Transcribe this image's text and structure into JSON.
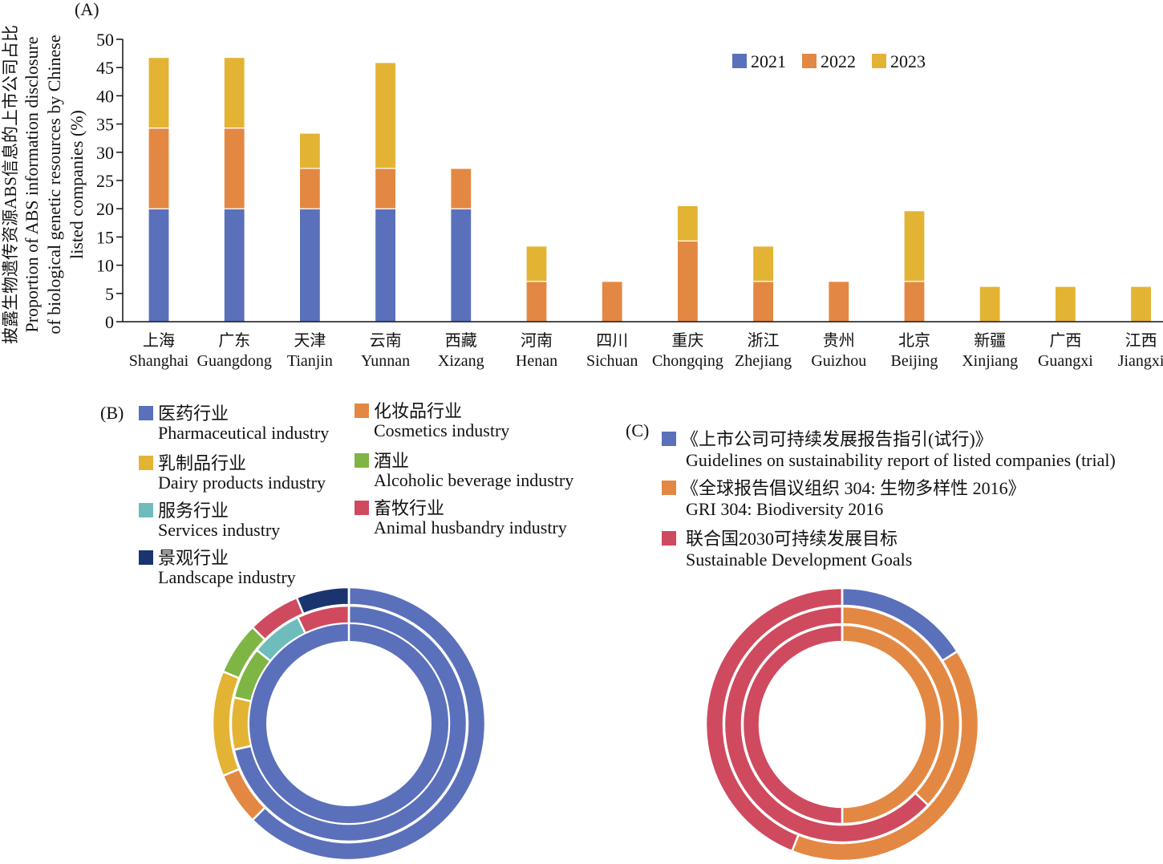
{
  "chart_data": [
    {
      "type": "bar",
      "stacked": true,
      "panel_label": "(A)",
      "ylabel_lines": [
        "披露生物遗传资源ABS信息的上市公司占比",
        "Proportion of ABS information disclosure",
        "of biological genetic resources by Chinese",
        "listed companies (%)"
      ],
      "ylim": [
        0,
        50
      ],
      "yticks": [
        "0",
        "5",
        "10",
        "15",
        "20",
        "25",
        "30",
        "35",
        "40",
        "45",
        "50"
      ],
      "categories_zh": [
        "上海",
        "广东",
        "天津",
        "云南",
        "西藏",
        "河南",
        "四川",
        "重庆",
        "浙江",
        "贵州",
        "北京",
        "新疆",
        "广西",
        "江西"
      ],
      "categories": [
        "Shanghai",
        "Guangdong",
        "Tianjin",
        "Yunnan",
        "Xizang",
        "Henan",
        "Sichuan",
        "Chongqing",
        "Zhejiang",
        "Guizhou",
        "Beijing",
        "Xinjiang",
        "Guangxi",
        "Jiangxi"
      ],
      "legend_position": "top-right",
      "series": [
        {
          "name": "2021",
          "color": "#5b70bb",
          "values": [
            20,
            20,
            20,
            20,
            20,
            0,
            0,
            0,
            0,
            0,
            0,
            0,
            0,
            0
          ]
        },
        {
          "name": "2022",
          "color": "#e38843",
          "values": [
            14.29,
            14.29,
            7.14,
            7.14,
            7.14,
            7.14,
            7.14,
            14.29,
            7.14,
            7.14,
            7.14,
            0,
            0,
            0
          ]
        },
        {
          "name": "2023",
          "color": "#e3b334",
          "values": [
            12.5,
            12.5,
            6.25,
            18.75,
            0,
            6.25,
            0,
            6.25,
            6.25,
            0,
            12.5,
            6.25,
            6.25,
            6.25
          ]
        }
      ]
    },
    {
      "type": "pie",
      "donut": true,
      "panel_label": "(B)",
      "categories": [
        {
          "zh": "医药行业",
          "en": "Pharmaceutical industry",
          "color": "#5b70bb"
        },
        {
          "zh": "化妆品行业",
          "en": "Cosmetics industry",
          "color": "#e38843"
        },
        {
          "zh": "乳制品行业",
          "en": "Dairy products industry",
          "color": "#e3b334"
        },
        {
          "zh": "酒业",
          "en": "Alcoholic beverage industry",
          "color": "#7fb544"
        },
        {
          "zh": "服务行业",
          "en": "Services industry",
          "color": "#6ebcbc"
        },
        {
          "zh": "畜牧行业",
          "en": "Animal husbandry industry",
          "color": "#cf4a5e"
        },
        {
          "zh": "景观行业",
          "en": "Landscape industry",
          "color": "#1a3470"
        }
      ],
      "rings_outer_to_inner": [
        {
          "values": [
            62.5,
            6.25,
            12.5,
            6.25,
            0,
            6.25,
            6.25
          ]
        },
        {
          "values": [
            71.43,
            0,
            7.14,
            7.14,
            7.14,
            7.14,
            0
          ]
        },
        {
          "values": [
            100,
            0,
            0,
            0,
            0,
            0,
            0
          ]
        }
      ]
    },
    {
      "type": "pie",
      "donut": true,
      "panel_label": "(C)",
      "categories": [
        {
          "zh": "《上市公司可持续发展报告指引(试行)》",
          "en": "Guidelines on sustainability report of listed companies (trial)",
          "color": "#5b70bb"
        },
        {
          "zh": "《全球报告倡议组织 304: 生物多样性 2016》",
          "en": "GRI 304: Biodiversity 2016",
          "color": "#e38843"
        },
        {
          "zh": "联合国2030可持续发展目标",
          "en": "Sustainable Development Goals",
          "color": "#cf4a5e"
        }
      ],
      "rings_outer_to_inner": [
        {
          "values": [
            16,
            40,
            44
          ]
        },
        {
          "values": [
            0,
            37,
            63
          ]
        },
        {
          "values": [
            0,
            50,
            50
          ]
        }
      ]
    }
  ]
}
